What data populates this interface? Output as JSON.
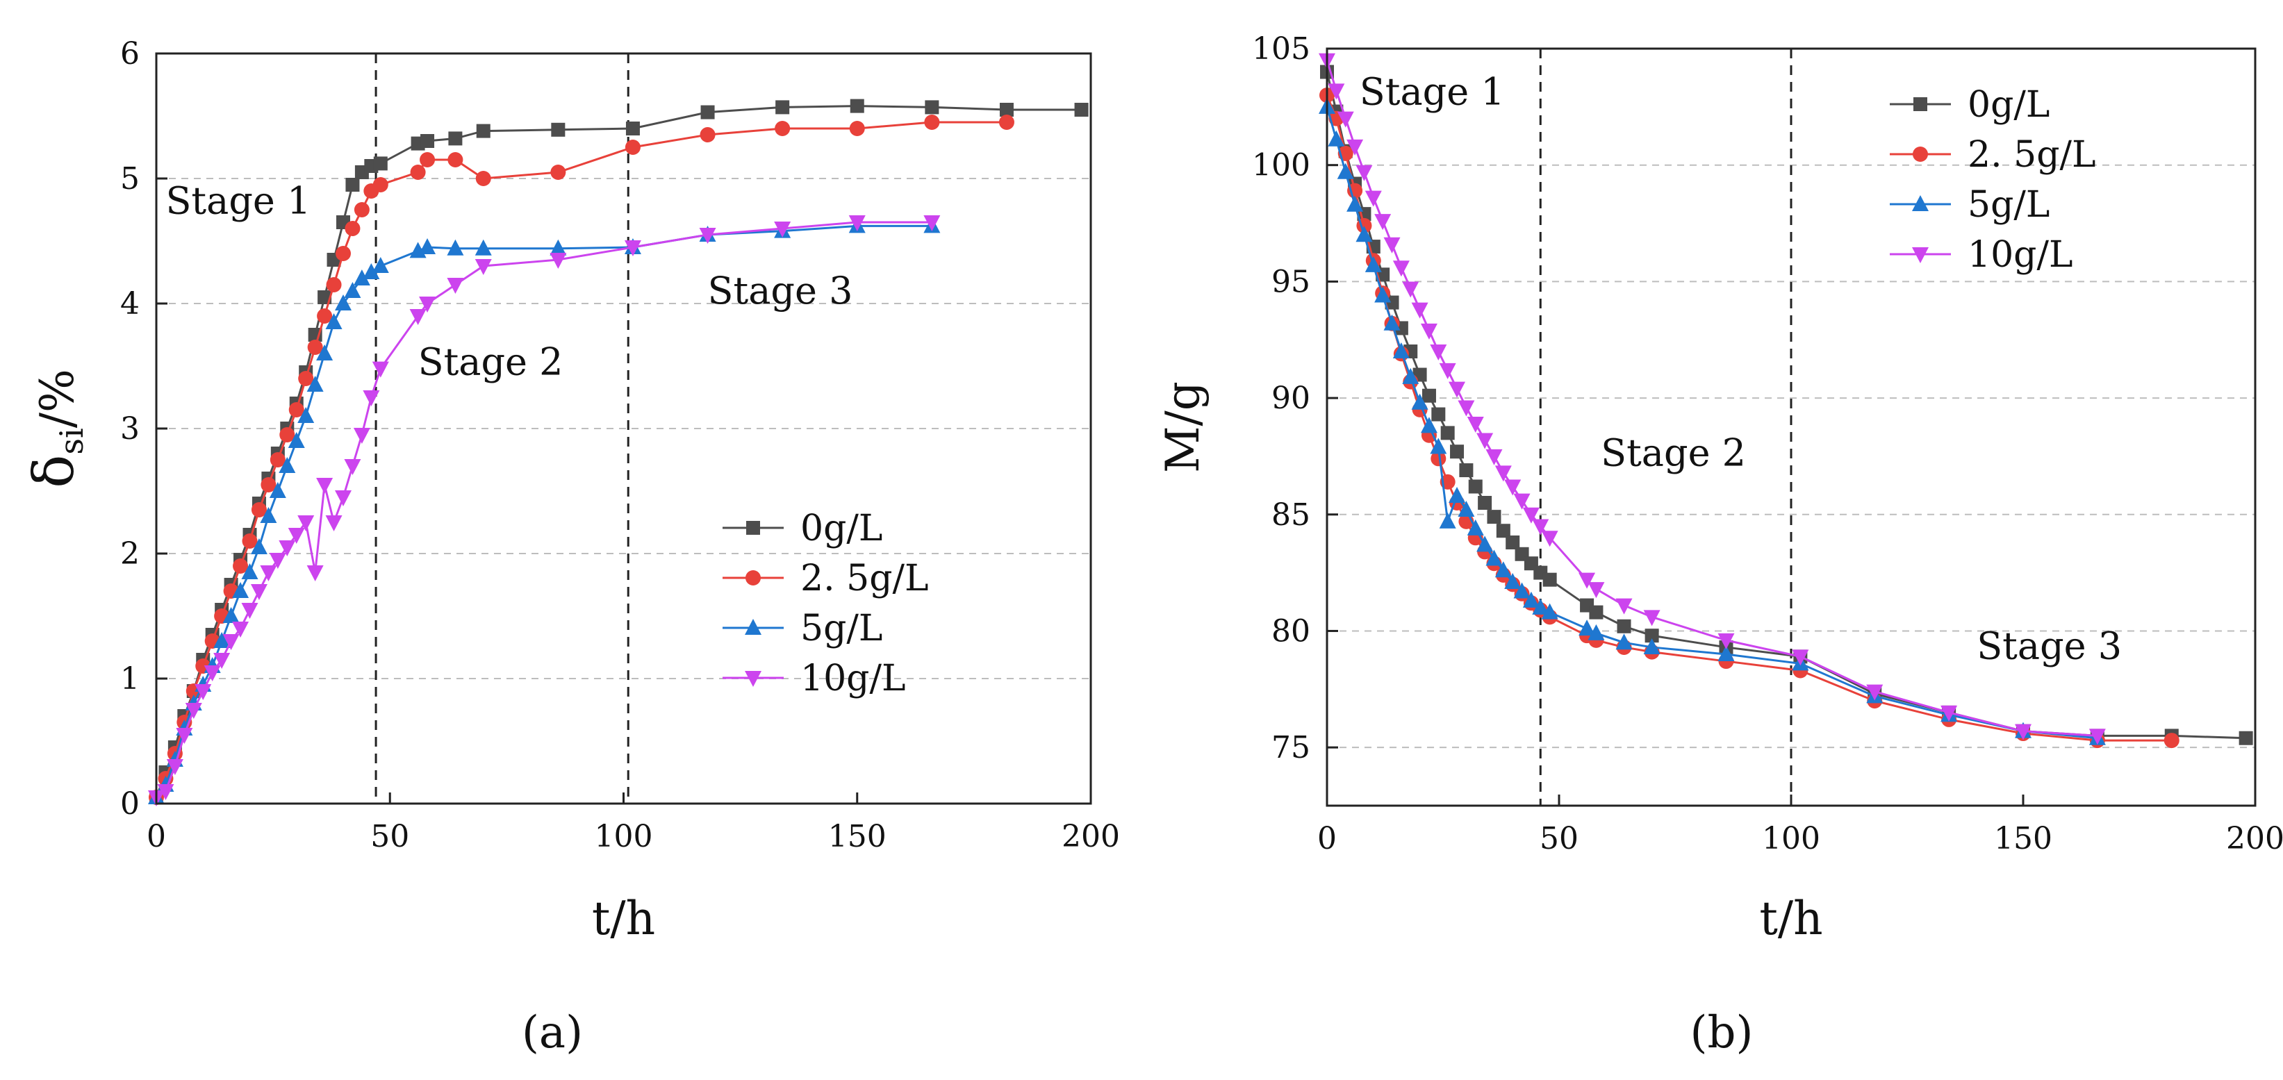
{
  "panel_labels": [
    "(a)",
    "(b)"
  ],
  "chart_data": [
    {
      "id": "a",
      "type": "line",
      "title": "",
      "xlabel": "t/h",
      "ylabel_main": "δ",
      "ylabel_sub": "si",
      "ylabel_tail": "/%",
      "xlim": [
        0,
        200
      ],
      "ylim": [
        0,
        6
      ],
      "xticks": [
        0,
        50,
        100,
        150,
        200
      ],
      "yticks": [
        0,
        1,
        2,
        3,
        4,
        5,
        6
      ],
      "xtick_labels": [
        "0",
        "50",
        "100",
        "150",
        "200"
      ],
      "ytick_labels": [
        "0",
        "1",
        "2",
        "3",
        "4",
        "5",
        "6"
      ],
      "grid": "horizontal dashed",
      "legend_position": "lower-right",
      "vlines": [
        47,
        101
      ],
      "annotations": [
        {
          "text": "Stage 1",
          "x": 2,
          "y": 4.72
        },
        {
          "text": "Stage 2",
          "x": 56,
          "y": 3.43
        },
        {
          "text": "Stage 3",
          "x": 118,
          "y": 4.0
        }
      ],
      "series": [
        {
          "name": "0g/L",
          "color": "#4d4d4d",
          "marker": "square",
          "x": [
            0,
            2,
            4,
            6,
            8,
            10,
            12,
            14,
            16,
            18,
            20,
            22,
            24,
            26,
            28,
            30,
            32,
            34,
            36,
            38,
            40,
            42,
            44,
            46,
            48,
            56,
            58,
            64,
            70,
            86,
            102,
            118,
            134,
            150,
            166,
            182,
            198
          ],
          "y": [
            0.05,
            0.25,
            0.45,
            0.7,
            0.9,
            1.15,
            1.35,
            1.55,
            1.75,
            1.95,
            2.15,
            2.4,
            2.6,
            2.8,
            3.0,
            3.2,
            3.45,
            3.75,
            4.05,
            4.35,
            4.65,
            4.95,
            5.05,
            5.1,
            5.12,
            5.28,
            5.3,
            5.32,
            5.38,
            5.39,
            5.4,
            5.53,
            5.57,
            5.58,
            5.57,
            5.55,
            5.55
          ]
        },
        {
          "name": "2. 5g/L",
          "color": "#e8413a",
          "marker": "circle",
          "x": [
            0,
            2,
            4,
            6,
            8,
            10,
            12,
            14,
            16,
            18,
            20,
            22,
            24,
            26,
            28,
            30,
            32,
            34,
            36,
            38,
            40,
            42,
            44,
            46,
            48,
            56,
            58,
            64,
            70,
            86,
            102,
            118,
            134,
            150,
            166,
            182
          ],
          "y": [
            0.05,
            0.2,
            0.4,
            0.65,
            0.9,
            1.1,
            1.3,
            1.5,
            1.7,
            1.9,
            2.1,
            2.35,
            2.55,
            2.75,
            2.95,
            3.15,
            3.4,
            3.65,
            3.9,
            4.15,
            4.4,
            4.6,
            4.75,
            4.9,
            4.95,
            5.05,
            5.15,
            5.15,
            5.0,
            5.05,
            5.25,
            5.35,
            5.4,
            5.4,
            5.45,
            5.45
          ]
        },
        {
          "name": "5g/L",
          "color": "#1f77d0",
          "marker": "triangle-up",
          "x": [
            0,
            2,
            4,
            6,
            8,
            10,
            12,
            14,
            16,
            18,
            20,
            22,
            24,
            26,
            28,
            30,
            32,
            34,
            36,
            38,
            40,
            42,
            44,
            46,
            48,
            56,
            58,
            64,
            70,
            86,
            102,
            118,
            134,
            150,
            166
          ],
          "y": [
            0.05,
            0.15,
            0.35,
            0.6,
            0.8,
            0.95,
            1.1,
            1.3,
            1.5,
            1.7,
            1.85,
            2.05,
            2.3,
            2.5,
            2.7,
            2.9,
            3.1,
            3.35,
            3.6,
            3.85,
            4.0,
            4.1,
            4.2,
            4.25,
            4.3,
            4.42,
            4.45,
            4.44,
            4.44,
            4.44,
            4.45,
            4.55,
            4.58,
            4.62,
            4.62
          ]
        },
        {
          "name": "10g/L",
          "color": "#cc44ee",
          "marker": "triangle-down",
          "x": [
            0,
            2,
            4,
            6,
            8,
            10,
            12,
            14,
            16,
            18,
            20,
            22,
            24,
            26,
            28,
            30,
            32,
            34,
            36,
            38,
            40,
            42,
            44,
            46,
            48,
            56,
            58,
            64,
            70,
            86,
            102,
            118,
            134,
            150,
            166
          ],
          "y": [
            0.05,
            0.1,
            0.3,
            0.55,
            0.75,
            0.9,
            1.05,
            1.15,
            1.3,
            1.4,
            1.55,
            1.7,
            1.85,
            1.95,
            2.05,
            2.15,
            2.25,
            1.85,
            2.55,
            2.25,
            2.45,
            2.7,
            2.95,
            3.25,
            3.48,
            3.9,
            4.0,
            4.15,
            4.3,
            4.35,
            4.45,
            4.55,
            4.6,
            4.65,
            4.65
          ]
        }
      ]
    },
    {
      "id": "b",
      "type": "line",
      "title": "",
      "xlabel": "t/h",
      "ylabel": "M/g",
      "xlim": [
        0,
        200
      ],
      "ylim": [
        72.5,
        105
      ],
      "xticks": [
        0,
        50,
        100,
        150,
        200
      ],
      "yticks": [
        75,
        80,
        85,
        90,
        95,
        100,
        105
      ],
      "xtick_labels": [
        "0",
        "50",
        "100",
        "150",
        "200"
      ],
      "ytick_labels": [
        "75",
        "80",
        "85",
        "90",
        "95",
        "100",
        "105"
      ],
      "grid": "horizontal dashed",
      "legend_position": "top-right",
      "vlines": [
        46,
        100
      ],
      "annotations": [
        {
          "text": "Stage 1",
          "x": 7,
          "y": 102.6
        },
        {
          "text": "Stage 2",
          "x": 59,
          "y": 87.1
        },
        {
          "text": "Stage 3",
          "x": 140,
          "y": 78.8
        }
      ],
      "series": [
        {
          "name": "0g/L",
          "color": "#4d4d4d",
          "marker": "square",
          "x": [
            0,
            2,
            4,
            6,
            8,
            10,
            12,
            14,
            16,
            18,
            20,
            22,
            24,
            26,
            28,
            30,
            32,
            34,
            36,
            38,
            40,
            42,
            44,
            46,
            48,
            56,
            58,
            64,
            70,
            86,
            102,
            118,
            134,
            150,
            166,
            182,
            198
          ],
          "y": [
            104,
            102.3,
            100.6,
            99.2,
            97.9,
            96.5,
            95.3,
            94.1,
            93.0,
            92.0,
            91.0,
            90.1,
            89.3,
            88.5,
            87.7,
            86.9,
            86.2,
            85.5,
            84.9,
            84.3,
            83.8,
            83.3,
            82.9,
            82.5,
            82.2,
            81.1,
            80.8,
            80.2,
            79.8,
            79.3,
            78.9,
            77.3,
            76.5,
            75.7,
            75.5,
            75.5,
            75.4
          ]
        },
        {
          "name": "2. 5g/L",
          "color": "#e8413a",
          "marker": "circle",
          "x": [
            0,
            2,
            4,
            6,
            8,
            10,
            12,
            14,
            16,
            18,
            20,
            22,
            24,
            26,
            28,
            30,
            32,
            34,
            36,
            38,
            40,
            42,
            44,
            46,
            48,
            56,
            58,
            64,
            70,
            86,
            102,
            118,
            134,
            150,
            166,
            182
          ],
          "y": [
            103,
            102.0,
            100.5,
            98.9,
            97.4,
            95.9,
            94.5,
            93.2,
            91.9,
            90.7,
            89.5,
            88.4,
            87.4,
            86.4,
            85.5,
            84.7,
            84.0,
            83.4,
            82.9,
            82.4,
            82.0,
            81.6,
            81.2,
            80.9,
            80.6,
            79.8,
            79.6,
            79.3,
            79.1,
            78.7,
            78.3,
            77.0,
            76.2,
            75.6,
            75.3,
            75.3
          ]
        },
        {
          "name": "5g/L",
          "color": "#1f77d0",
          "marker": "triangle-up",
          "x": [
            0,
            2,
            4,
            6,
            8,
            10,
            12,
            14,
            16,
            18,
            20,
            22,
            24,
            26,
            28,
            30,
            32,
            34,
            36,
            38,
            40,
            42,
            44,
            46,
            48,
            56,
            58,
            64,
            70,
            86,
            102,
            118,
            134,
            150,
            166
          ],
          "y": [
            102.5,
            101.1,
            99.7,
            98.3,
            97.0,
            95.7,
            94.4,
            93.2,
            92.0,
            90.9,
            89.8,
            88.8,
            87.9,
            84.7,
            85.8,
            85.2,
            84.4,
            83.7,
            83.1,
            82.6,
            82.1,
            81.7,
            81.3,
            81.0,
            80.8,
            80.1,
            79.9,
            79.5,
            79.3,
            79.0,
            78.6,
            77.2,
            76.4,
            75.7,
            75.4
          ]
        },
        {
          "name": "10g/L",
          "color": "#cc44ee",
          "marker": "triangle-down",
          "x": [
            0,
            2,
            4,
            6,
            8,
            10,
            12,
            14,
            16,
            18,
            20,
            22,
            24,
            26,
            28,
            30,
            32,
            34,
            36,
            38,
            40,
            42,
            44,
            46,
            48,
            56,
            58,
            64,
            70,
            86,
            102,
            118,
            134,
            150,
            166
          ],
          "y": [
            104.5,
            103.2,
            102.0,
            100.8,
            99.7,
            98.6,
            97.6,
            96.6,
            95.6,
            94.7,
            93.8,
            92.9,
            92.0,
            91.2,
            90.4,
            89.6,
            88.9,
            88.2,
            87.5,
            86.8,
            86.2,
            85.6,
            85.0,
            84.5,
            84.0,
            82.2,
            81.8,
            81.1,
            80.6,
            79.6,
            78.9,
            77.4,
            76.5,
            75.7,
            75.5
          ]
        }
      ]
    }
  ]
}
